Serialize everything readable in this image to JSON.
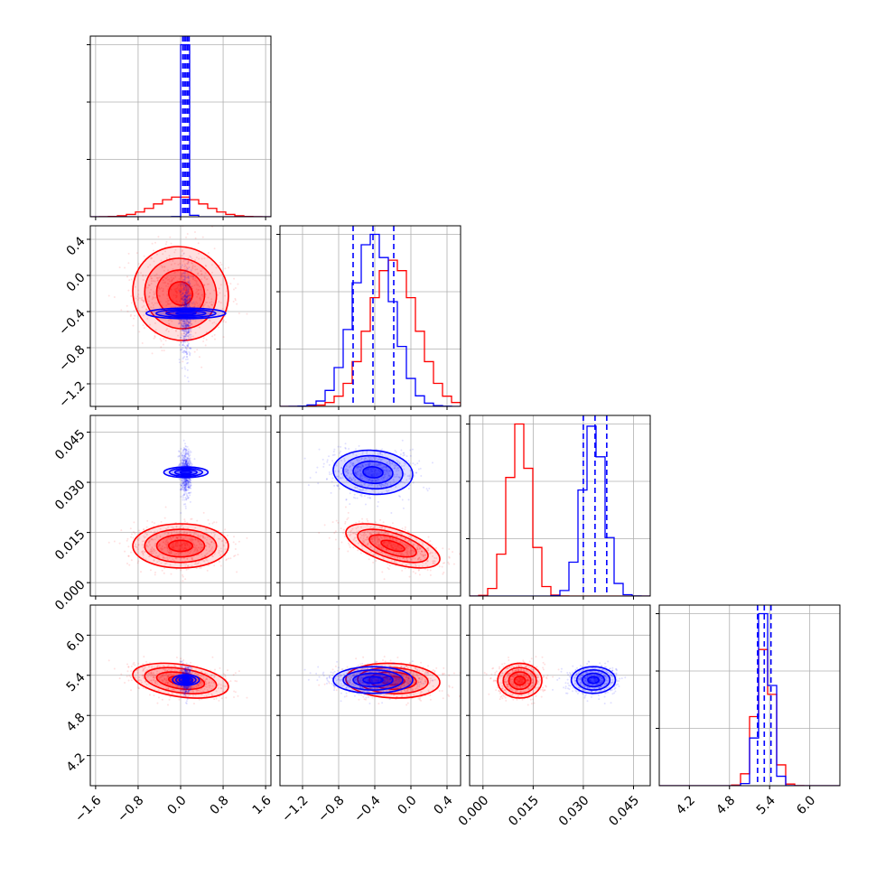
{
  "chart_data": {
    "type": "corner",
    "title": "",
    "grid": true,
    "colors": {
      "blue": "#0000ff",
      "red": "#ff0000"
    },
    "parameters": [
      {
        "range": [
          -1.7,
          1.7
        ],
        "ticks": [
          -1.6,
          -0.8,
          0.0,
          0.8,
          1.6
        ],
        "tick_labels": [
          "−1.6",
          "−0.8",
          "0.0",
          "0.8",
          "1.6"
        ]
      },
      {
        "range": [
          -1.45,
          0.55
        ],
        "ticks": [
          -1.2,
          -0.8,
          -0.4,
          0.0,
          0.4
        ],
        "tick_labels": [
          "−1.2",
          "−0.8",
          "−0.4",
          "0.0",
          "0.4"
        ]
      },
      {
        "range": [
          -0.004,
          0.05
        ],
        "ticks": [
          0.0,
          0.015,
          0.03,
          0.045
        ],
        "tick_labels": [
          "0.000",
          "0.015",
          "0.030",
          "0.045"
        ]
      },
      {
        "range": [
          3.75,
          6.45
        ],
        "ticks": [
          4.2,
          4.8,
          5.4,
          6.0
        ],
        "tick_labels": [
          "4.2",
          "4.8",
          "5.4",
          "6.0"
        ]
      }
    ],
    "series": [
      {
        "color": "#ff0000",
        "mean": [
          0.0,
          -0.2,
          0.011,
          5.32
        ],
        "std": [
          0.45,
          0.26,
          0.0033,
          0.13
        ],
        "corr": [
          [
            0,
            1,
            -0.05
          ],
          [
            0,
            2,
            0.0
          ],
          [
            0,
            3,
            -0.35
          ],
          [
            1,
            2,
            -0.6
          ],
          [
            1,
            3,
            -0.1
          ],
          [
            2,
            3,
            0.0
          ]
        ],
        "quantile_lines": []
      },
      {
        "color": "#0000ff",
        "mean": [
          0.1,
          -0.42,
          0.033,
          5.33
        ],
        "std": [
          0.05,
          0.22,
          0.0033,
          0.1
        ],
        "corr": [
          [
            0,
            1,
            0.0
          ],
          [
            0,
            2,
            0.0
          ],
          [
            0,
            3,
            0.0
          ],
          [
            1,
            2,
            -0.1
          ],
          [
            1,
            3,
            0.0
          ],
          [
            2,
            3,
            0.0
          ]
        ],
        "quantile_lines": [
          [
            0.04,
            0.07,
            0.1,
            0.13,
            0.16
          ],
          [
            -0.64,
            -0.42,
            -0.19
          ],
          [
            0.03,
            0.0335,
            0.037
          ],
          [
            5.22,
            5.32,
            5.42
          ]
        ]
      }
    ]
  }
}
